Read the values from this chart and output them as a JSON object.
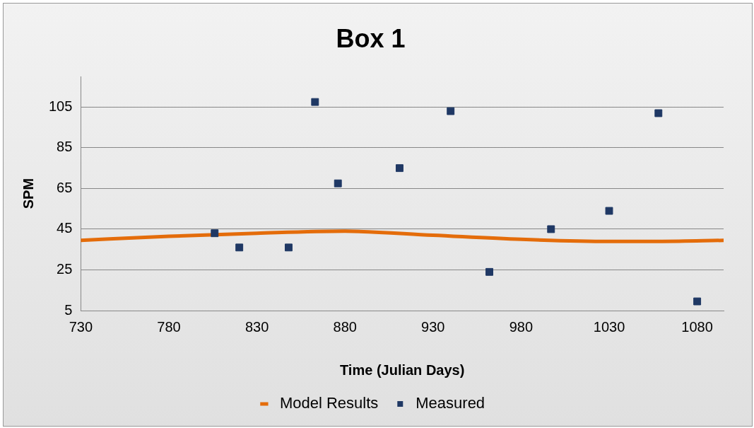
{
  "chart_data": {
    "type": "scatter",
    "title": "Box 1",
    "xlabel": "Time (Julian Days)",
    "ylabel": "SPM",
    "xlim": [
      730,
      1095
    ],
    "xticks": [
      730,
      780,
      830,
      880,
      930,
      980,
      1030,
      1080
    ],
    "ylim": [
      5,
      120
    ],
    "yticks": [
      5,
      25,
      45,
      65,
      85,
      105
    ],
    "grid": "y",
    "legend": "bottom",
    "marker": "square",
    "series": [
      {
        "name": "Model Results",
        "type": "line",
        "color": "#e46c0a",
        "marker": "none",
        "x": [
          730,
          780,
          830,
          880,
          930,
          980,
          1030,
          1060,
          1095
        ],
        "values": [
          39.5,
          41.5,
          43,
          44,
          42,
          40,
          39,
          39,
          39.5
        ]
      },
      {
        "name": "Measured",
        "type": "scatter",
        "color": "#1f3864",
        "x": [
          806,
          820,
          848,
          863,
          876,
          911,
          940,
          962,
          997,
          1030,
          1058,
          1080
        ],
        "values": [
          43,
          36,
          36,
          107.5,
          67.5,
          75,
          103,
          24,
          45,
          54,
          102,
          9.5
        ]
      }
    ]
  }
}
